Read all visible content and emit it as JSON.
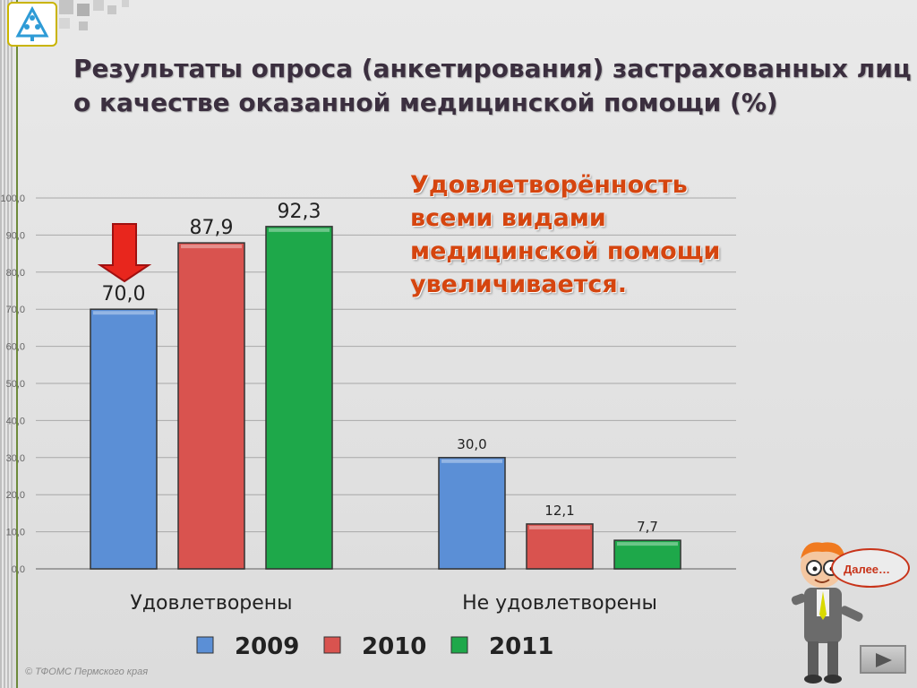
{
  "title": {
    "line1": "Результаты опроса (анкетирования) застрахованных лиц",
    "line2": "о качестве оказанной медицинской помощи (%)"
  },
  "annotation": {
    "line1": "Удовлетворённость",
    "line2": "всеми видами",
    "line3": "медицинской помощи",
    "line4": "увеличивается."
  },
  "callout": {
    "text": "Далее…"
  },
  "footer": {
    "text": "© ТФОМС Пермского края"
  },
  "icons": {
    "logo": "tree-logo-icon",
    "down_arrow": "down-arrow-icon",
    "next": "play-icon",
    "character": "cartoon-presenter-icon"
  },
  "chart_data": {
    "type": "bar",
    "categories": [
      "Удовлетворены",
      "Не удовлетворены"
    ],
    "series": [
      {
        "name": "2009",
        "values": [
          70.0,
          30.0
        ],
        "labels": [
          "70,0",
          "30,0"
        ],
        "color": "#5b8fd6"
      },
      {
        "name": "2010",
        "values": [
          87.9,
          12.1
        ],
        "labels": [
          "87,9",
          "12,1"
        ],
        "color": "#d9534f"
      },
      {
        "name": "2011",
        "values": [
          92.3,
          7.7
        ],
        "labels": [
          "92,3",
          "7,7"
        ],
        "color": "#1ea84a"
      }
    ],
    "yticks": [
      "0,0",
      "10,0",
      "20,0",
      "30,0",
      "40,0",
      "50,0",
      "60,0",
      "70,0",
      "80,0",
      "90,0",
      "100,0"
    ],
    "ylim": [
      0,
      100
    ],
    "grid": true,
    "legend": "bottom",
    "highlight": {
      "series": "2009",
      "category": "Удовлетворены",
      "marker": "down-arrow"
    }
  }
}
